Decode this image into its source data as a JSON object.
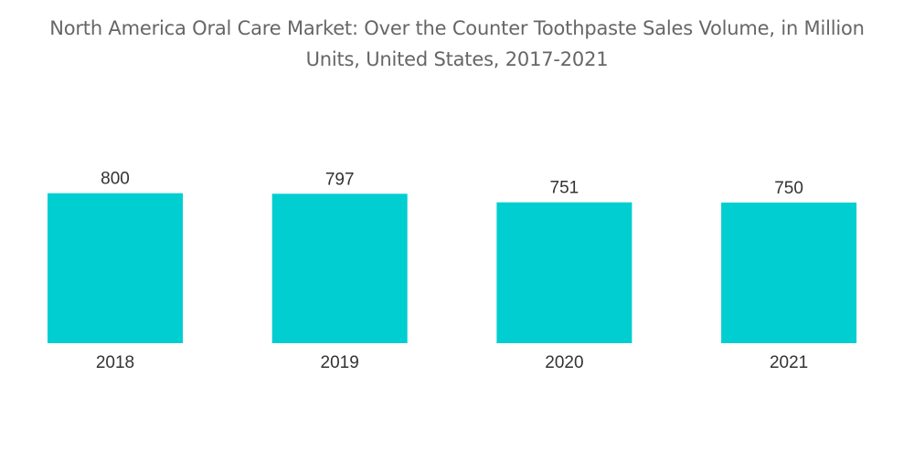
{
  "chart_data": {
    "type": "bar",
    "title": "North America Oral Care Market: Over the Counter Toothpaste Sales Volume, in Million Units, United States, 2017-2021",
    "title_lines": [
      "North America Oral Care Market: Over the Counter Toothpaste Sales Volume, in Million",
      "Units, United States, 2017-2021"
    ],
    "categories": [
      "2018",
      "2019",
      "2020",
      "2021"
    ],
    "values": [
      800,
      797,
      751,
      750
    ],
    "xlabel": "",
    "ylabel": "",
    "bar_color": "#00CED1",
    "grid": false,
    "legend": "none"
  }
}
